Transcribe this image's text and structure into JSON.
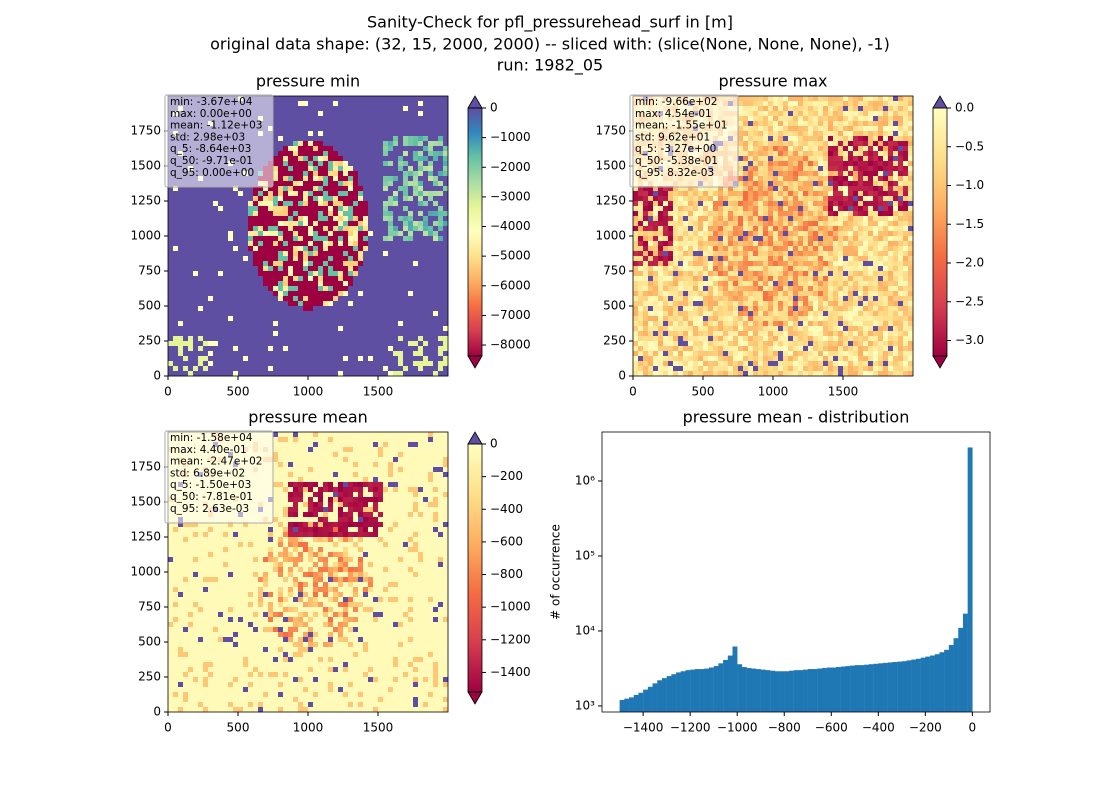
{
  "title": [
    "Sanity-Check for pfl_pressurehead_surf in [m]",
    "original data shape: (32, 15, 2000, 2000) -- sliced with: (slice(None, None, None), -1)",
    "run: 1982_05"
  ],
  "chart_data": [
    {
      "type": "heatmap",
      "title": "pressure min",
      "stats": [
        "min: -3.67e+04",
        "max: 0.00e+00",
        "mean: -1.12e+03",
        "std: 2.98e+03",
        "q_5: -8.64e+03",
        "q_50: -9.71e-01",
        "q_95: 0.00e+00"
      ],
      "xlim": [
        0,
        2000
      ],
      "ylim": [
        0,
        2000
      ],
      "xticks": [
        0,
        500,
        1000,
        1500
      ],
      "yticks": [
        0,
        250,
        500,
        750,
        1000,
        1250,
        1500,
        1750
      ],
      "colorbar": {
        "lim": [
          -8370,
          0
        ],
        "extend": "both",
        "ticks": [
          0,
          {
            "value": -1000,
            "label": "−1000"
          },
          {
            "value": -2000,
            "label": "−2000"
          },
          {
            "value": -3000,
            "label": "−3000"
          },
          {
            "value": -4000,
            "label": "−4000"
          },
          {
            "value": -5000,
            "label": "−5000"
          },
          {
            "value": -6000,
            "label": "−6000"
          },
          {
            "value": -7000,
            "label": "−7000"
          },
          {
            "value": -8000,
            "label": "−8000"
          }
        ],
        "colors": [
          "#9e0142",
          "#d53e4f",
          "#f46d43",
          "#fdae61",
          "#fee08b",
          "#ffffbf",
          "#e6f598",
          "#abdda4",
          "#66c2a5",
          "#3288bd",
          "#5e4fa2"
        ],
        "extend_colors": [
          "#9e0142",
          "#5e4fa2"
        ]
      }
    },
    {
      "type": "heatmap",
      "title": "pressure max",
      "stats": [
        "min: -9.66e+02",
        "max: 4.54e-01",
        "mean: -1.55e+01",
        "std: 9.62e+01",
        "q_5: -3.27e+00",
        "q_50: -5.38e-01",
        "q_95: 8.32e-03"
      ],
      "xlim": [
        0,
        2000
      ],
      "ylim": [
        0,
        2000
      ],
      "xticks": [
        0,
        500,
        1000,
        1500
      ],
      "yticks": [
        0,
        250,
        500,
        750,
        1000,
        1250,
        1500,
        1750
      ],
      "colorbar": {
        "lim": [
          -3.2,
          0
        ],
        "extend": "both",
        "ticks": [
          {
            "value": 0,
            "label": "0.0"
          },
          {
            "value": -0.5,
            "label": "−0.5"
          },
          {
            "value": -1,
            "label": "−1.0"
          },
          {
            "value": -1.5,
            "label": "−1.5"
          },
          {
            "value": -2,
            "label": "−2.0"
          },
          {
            "value": -2.5,
            "label": "−2.5"
          },
          {
            "value": -3,
            "label": "−3.0"
          }
        ],
        "colors": [
          "#9e0142",
          "#d53e4f",
          "#f46d43",
          "#fdae61",
          "#fee08b",
          "#ffffbf"
        ],
        "extend_colors": [
          "#9e0142",
          "#5e4fa2"
        ]
      }
    },
    {
      "type": "heatmap",
      "title": "pressure mean",
      "stats": [
        "min: -1.58e+04",
        "max: 4.40e-01",
        "mean: -2.47e+02",
        "std: 6.89e+02",
        "q_5: -1.50e+03",
        "q_50: -7.81e-01",
        "q_95: 2.63e-03"
      ],
      "xlim": [
        0,
        2000
      ],
      "ylim": [
        0,
        2000
      ],
      "xticks": [
        0,
        500,
        1000,
        1500
      ],
      "yticks": [
        0,
        250,
        500,
        750,
        1000,
        1250,
        1500,
        1750
      ],
      "colorbar": {
        "lim": [
          -1520,
          0
        ],
        "extend": "both",
        "ticks": [
          0,
          {
            "value": -200,
            "label": "−200"
          },
          {
            "value": -400,
            "label": "−400"
          },
          {
            "value": -600,
            "label": "−600"
          },
          {
            "value": -800,
            "label": "−800"
          },
          {
            "value": -1000,
            "label": "−1000"
          },
          {
            "value": -1200,
            "label": "−1200"
          },
          {
            "value": -1400,
            "label": "−1400"
          }
        ],
        "colors": [
          "#9e0142",
          "#d53e4f",
          "#f46d43",
          "#fdae61",
          "#fee08b",
          "#ffffbf"
        ],
        "extend_colors": [
          "#9e0142",
          "#5e4fa2"
        ]
      }
    },
    {
      "type": "histogram",
      "title": "pressure mean - distribution",
      "ylabel": "# of occurrence",
      "color": "#1f77b4",
      "log_y": true,
      "bins": [
        -1500,
        -1480,
        -1460,
        -1440,
        -1420,
        -1400,
        -1380,
        -1360,
        -1340,
        -1320,
        -1300,
        -1280,
        -1260,
        -1240,
        -1220,
        -1200,
        -1180,
        -1160,
        -1140,
        -1120,
        -1100,
        -1080,
        -1060,
        -1040,
        -1020,
        -1000,
        -980,
        -960,
        -940,
        -920,
        -900,
        -880,
        -860,
        -840,
        -820,
        -800,
        -780,
        -760,
        -740,
        -720,
        -700,
        -680,
        -660,
        -640,
        -620,
        -600,
        -580,
        -560,
        -540,
        -520,
        -500,
        -480,
        -460,
        -440,
        -420,
        -400,
        -380,
        -360,
        -340,
        -320,
        -300,
        -280,
        -260,
        -240,
        -220,
        -200,
        -180,
        -160,
        -140,
        -120,
        -100,
        -80,
        -60,
        -40,
        -20,
        0
      ],
      "values": [
        1200,
        1250,
        1300,
        1400,
        1500,
        1650,
        1800,
        2000,
        2200,
        2350,
        2500,
        2650,
        2800,
        2900,
        3000,
        3050,
        3100,
        3100,
        3150,
        3250,
        3400,
        3700,
        4100,
        4700,
        6200,
        3600,
        3300,
        3200,
        3150,
        3100,
        3050,
        3000,
        2950,
        2900,
        2900,
        2900,
        2950,
        3000,
        3000,
        3050,
        3100,
        3100,
        3150,
        3200,
        3250,
        3250,
        3300,
        3350,
        3400,
        3450,
        3500,
        3500,
        3550,
        3600,
        3650,
        3700,
        3750,
        3800,
        3850,
        3900,
        3950,
        4050,
        4150,
        4250,
        4400,
        4550,
        4700,
        4900,
        5200,
        5600,
        6500,
        8000,
        11000,
        17000,
        2800000
      ],
      "xlim": [
        -1575,
        75
      ],
      "ylim": [
        830,
        4500000
      ],
      "xticks": [
        {
          "value": -1400,
          "label": "−1400"
        },
        {
          "value": -1200,
          "label": "−1200"
        },
        {
          "value": -1000,
          "label": "−1000"
        },
        {
          "value": -800,
          "label": "−800"
        },
        {
          "value": -600,
          "label": "−600"
        },
        {
          "value": -400,
          "label": "−400"
        },
        {
          "value": -200,
          "label": "−200"
        },
        0
      ],
      "yticks": [
        {
          "value": 1000,
          "label": "10³"
        },
        {
          "value": 10000,
          "label": "10⁴"
        },
        {
          "value": 100000,
          "label": "10⁵"
        },
        {
          "value": 1000000,
          "label": "10⁶"
        }
      ]
    }
  ]
}
